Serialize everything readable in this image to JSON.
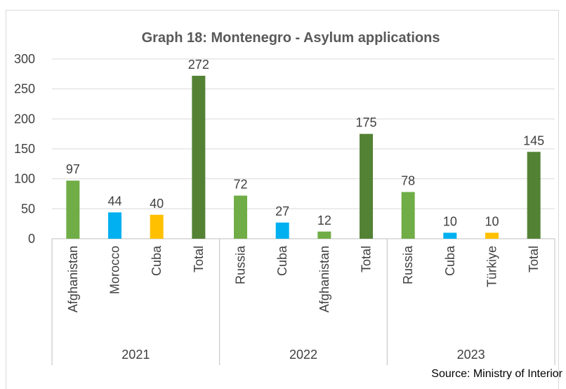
{
  "chart_data": {
    "type": "bar",
    "title": "Graph 18: Montenegro - Asylum applications",
    "ylim": [
      0,
      300
    ],
    "yticks": [
      0,
      50,
      100,
      150,
      200,
      250,
      300
    ],
    "grid": true,
    "legend": "none",
    "groups": [
      {
        "label": "2021",
        "bars": [
          {
            "category": "Afghanistan",
            "value": 97,
            "color": "#70ad47"
          },
          {
            "category": "Morocco",
            "value": 44,
            "color": "#00b0f0"
          },
          {
            "category": "Cuba",
            "value": 40,
            "color": "#ffc000"
          },
          {
            "category": "Total",
            "value": 272,
            "color": "#548235"
          }
        ]
      },
      {
        "label": "2022",
        "bars": [
          {
            "category": "Russia",
            "value": 72,
            "color": "#70ad47"
          },
          {
            "category": "Cuba",
            "value": 27,
            "color": "#00b0f0"
          },
          {
            "category": "Afghanistan",
            "value": 12,
            "color": "#70ad47"
          },
          {
            "category": "Total",
            "value": 175,
            "color": "#548235"
          }
        ]
      },
      {
        "label": "2023",
        "bars": [
          {
            "category": "Russia",
            "value": 78,
            "color": "#70ad47"
          },
          {
            "category": "Cuba",
            "value": 10,
            "color": "#00b0f0"
          },
          {
            "category": "Türkiye",
            "value": 10,
            "color": "#ffc000"
          },
          {
            "category": "Total",
            "value": 145,
            "color": "#548235"
          }
        ]
      }
    ],
    "source": "Source: Ministry of Interior"
  }
}
